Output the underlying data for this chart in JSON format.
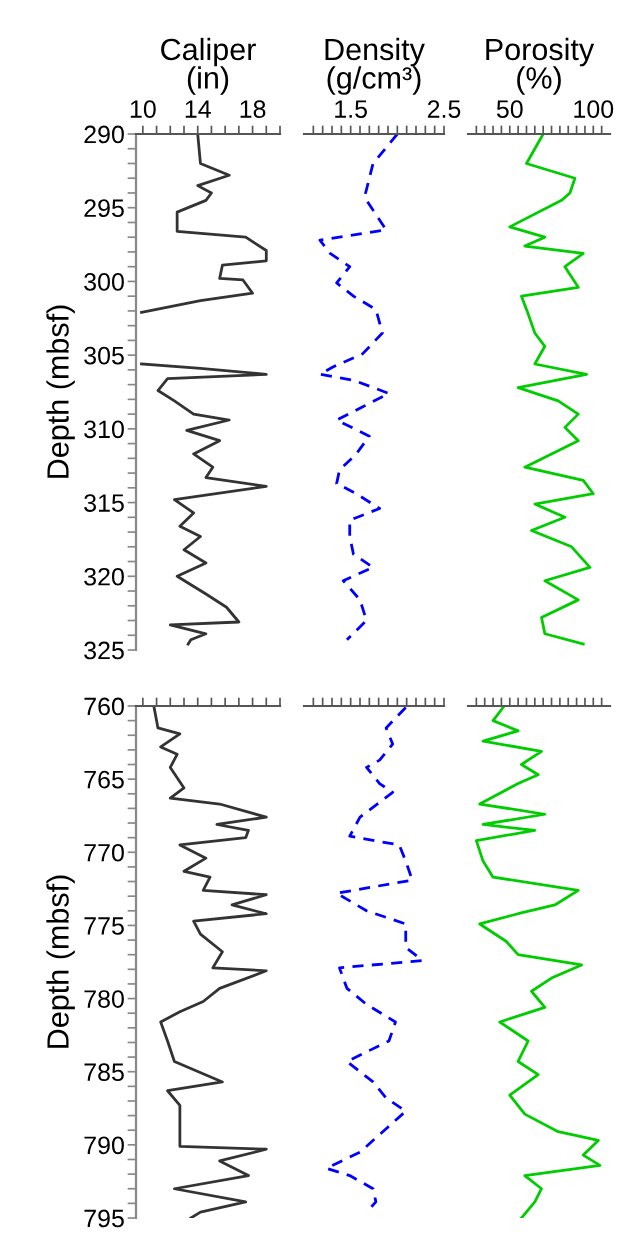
{
  "chart_data": [
    {
      "type": "line",
      "orientation": "horizontal",
      "title": "Caliper\n(in)",
      "ylabel": "Depth (mbsf)",
      "xlim": [
        9.5,
        20
      ],
      "ylim": [
        325,
        290
      ],
      "xticks": [
        10,
        {
          "value": 11,
          "label": null
        },
        {
          "value": 12,
          "label": null
        },
        {
          "value": 13,
          "label": null
        },
        14,
        {
          "value": 15,
          "label": null
        },
        {
          "value": 16,
          "label": null
        },
        {
          "value": 17,
          "label": null
        },
        18,
        {
          "value": 19,
          "label": null
        },
        {
          "value": 20,
          "label": null
        }
      ],
      "yticks": [
        290,
        {
          "value": 291,
          "label": null
        },
        {
          "value": 292,
          "label": null
        },
        {
          "value": 293,
          "label": null
        },
        {
          "value": 294,
          "label": null
        },
        295,
        {
          "value": 296,
          "label": null
        },
        {
          "value": 297,
          "label": null
        },
        {
          "value": 298,
          "label": null
        },
        {
          "value": 299,
          "label": null
        },
        300,
        {
          "value": 301,
          "label": null
        },
        {
          "value": 302,
          "label": null
        },
        {
          "value": 303,
          "label": null
        },
        {
          "value": 304,
          "label": null
        },
        305,
        {
          "value": 306,
          "label": null
        },
        {
          "value": 307,
          "label": null
        },
        {
          "value": 308,
          "label": null
        },
        {
          "value": 309,
          "label": null
        },
        310,
        {
          "value": 311,
          "label": null
        },
        {
          "value": 312,
          "label": null
        },
        {
          "value": 313,
          "label": null
        },
        {
          "value": 314,
          "label": null
        },
        315,
        {
          "value": 316,
          "label": null
        },
        {
          "value": 317,
          "label": null
        },
        {
          "value": 318,
          "label": null
        },
        {
          "value": 319,
          "label": null
        },
        320,
        {
          "value": 321,
          "label": null
        },
        {
          "value": 322,
          "label": null
        },
        {
          "value": 323,
          "label": null
        },
        {
          "value": 324,
          "label": null
        },
        325
      ],
      "series": [
        {
          "color": "#333333",
          "line_style": "solid",
          "x": [
            290,
            292,
            292.8,
            293.5,
            294,
            294.5,
            295.3,
            296.6,
            297,
            297.9,
            298.6,
            298.9,
            299.8,
            299.9,
            300.8,
            301.3,
            302.1,
            303.5,
            305.6,
            305.9,
            306.3,
            306.6,
            307.4,
            308.1,
            309,
            309.4,
            310.1,
            310.8,
            311.7,
            312.6,
            313.3,
            313.9,
            314.8,
            315.7,
            316.6,
            317.3,
            318.2,
            319.1,
            320,
            321.2,
            322.1,
            323.1,
            323.3,
            323.9,
            324.3,
            324.6
          ],
          "values": [
            14.0,
            14.2,
            16.3,
            14.0,
            15.0,
            14.6,
            12.5,
            12.5,
            17.5,
            19,
            19,
            15.8,
            15.6,
            17.3,
            18,
            14.2,
            9.9,
            null,
            9.9,
            14.2,
            19,
            11.8,
            11.1,
            12.3,
            13.7,
            16.3,
            13.2,
            15.6,
            13.7,
            15.1,
            14.6,
            19,
            12.3,
            13.7,
            12.7,
            14.2,
            13.0,
            14.6,
            12.5,
            14.6,
            16.1,
            17.0,
            12.0,
            14.6,
            13.5,
            13.3
          ]
        }
      ]
    },
    {
      "type": "line",
      "orientation": "horizontal",
      "title": "Density\n(g/cm³)",
      "xlim": [
        1,
        2.5
      ],
      "ylim": [
        325,
        290
      ],
      "tick_labels": "x",
      "xticks": [
        {
          "value": 1.1,
          "label": null
        },
        {
          "value": 1.2,
          "label": null
        },
        {
          "value": 1.3,
          "label": null
        },
        {
          "value": 1.4,
          "label": null
        },
        1.5,
        {
          "value": 1.6,
          "label": null
        },
        {
          "value": 1.7,
          "label": null
        },
        {
          "value": 1.8,
          "label": null
        },
        {
          "value": 1.9,
          "label": null
        },
        {
          "value": 2.0,
          "label": null
        },
        {
          "value": 2.1,
          "label": null
        },
        {
          "value": 2.2,
          "label": null
        },
        {
          "value": 2.3,
          "label": null
        },
        {
          "value": 2.4,
          "label": null
        },
        2.5
      ],
      "series": [
        {
          "color": "#0000ff",
          "line_style": "dashed",
          "x": [
            290,
            292,
            294,
            294.5,
            296.5,
            297.2,
            298.1,
            299,
            300.1,
            301,
            301.9,
            303.5,
            304.9,
            305.8,
            306.3,
            306.7,
            307.6,
            308.5,
            309.4,
            310.5,
            311.7,
            312.8,
            313.7,
            314.4,
            315.4,
            316.2,
            317.3,
            318.5,
            319.4,
            320.3,
            321.6,
            323,
            324.3
          ],
          "values": [
            2.0,
            1.74,
            1.66,
            1.67,
            1.88,
            1.17,
            1.28,
            1.49,
            1.35,
            1.53,
            1.77,
            1.84,
            1.63,
            1.31,
            1.17,
            1.53,
            1.91,
            1.63,
            1.35,
            1.7,
            1.56,
            1.38,
            1.35,
            1.56,
            1.81,
            1.49,
            1.49,
            1.53,
            1.74,
            1.42,
            1.6,
            1.67,
            1.46
          ]
        }
      ]
    },
    {
      "type": "line",
      "orientation": "horizontal",
      "title": "Porosity\n(%)",
      "xlim": [
        25,
        110
      ],
      "ylim": [
        325,
        290
      ],
      "tick_labels": "x",
      "xticks": [
        {
          "value": 30,
          "label": null
        },
        {
          "value": 35,
          "label": null
        },
        {
          "value": 40,
          "label": null
        },
        {
          "value": 45,
          "label": null
        },
        50,
        {
          "value": 55,
          "label": null
        },
        {
          "value": 60,
          "label": null
        },
        {
          "value": 65,
          "label": null
        },
        {
          "value": 70,
          "label": null
        },
        {
          "value": 75,
          "label": null
        },
        {
          "value": 80,
          "label": null
        },
        {
          "value": 85,
          "label": null
        },
        {
          "value": 90,
          "label": null
        },
        {
          "value": 95,
          "label": null
        },
        100,
        {
          "value": 105,
          "label": null
        }
      ],
      "series": [
        {
          "color": "#00cc00",
          "line_style": "solid",
          "x": [
            290,
            292,
            293,
            294,
            294.5,
            296.3,
            297,
            297.6,
            298.1,
            299,
            300.4,
            301,
            302.2,
            303.5,
            304.4,
            305.6,
            306.3,
            307.2,
            308.1,
            309,
            309.9,
            310.8,
            311.7,
            312.6,
            313.5,
            314.4,
            315.1,
            316,
            316.9,
            318,
            319.4,
            320.3,
            321.6,
            322.8,
            323.9,
            324.6
          ],
          "values": [
            70,
            60,
            89,
            86,
            81,
            50,
            71,
            59,
            94,
            83,
            91,
            57,
            61,
            65,
            71,
            65,
            96,
            55,
            79,
            91,
            83,
            91,
            75,
            59,
            94,
            100,
            65,
            83,
            63,
            87,
            98,
            71,
            91,
            69,
            71,
            94
          ]
        }
      ]
    },
    {
      "type": "line",
      "orientation": "horizontal",
      "ylabel": "Depth (mbsf)",
      "xlim": [
        9.5,
        20
      ],
      "ylim": [
        795,
        760
      ],
      "tick_labels": "y",
      "xticks": [
        10,
        {
          "value": 11,
          "label": null
        },
        {
          "value": 12,
          "label": null
        },
        {
          "value": 13,
          "label": null
        },
        14,
        {
          "value": 15,
          "label": null
        },
        {
          "value": 16,
          "label": null
        },
        {
          "value": 17,
          "label": null
        },
        18,
        {
          "value": 19,
          "label": null
        },
        {
          "value": 20,
          "label": null
        }
      ],
      "yticks": [
        760,
        {
          "value": 761,
          "label": null
        },
        {
          "value": 762,
          "label": null
        },
        {
          "value": 763,
          "label": null
        },
        {
          "value": 764,
          "label": null
        },
        765,
        {
          "value": 766,
          "label": null
        },
        {
          "value": 767,
          "label": null
        },
        {
          "value": 768,
          "label": null
        },
        {
          "value": 769,
          "label": null
        },
        770,
        {
          "value": 771,
          "label": null
        },
        {
          "value": 772,
          "label": null
        },
        {
          "value": 773,
          "label": null
        },
        {
          "value": 774,
          "label": null
        },
        775,
        {
          "value": 776,
          "label": null
        },
        {
          "value": 777,
          "label": null
        },
        {
          "value": 778,
          "label": null
        },
        {
          "value": 779,
          "label": null
        },
        780,
        {
          "value": 781,
          "label": null
        },
        {
          "value": 782,
          "label": null
        },
        {
          "value": 783,
          "label": null
        },
        {
          "value": 784,
          "label": null
        },
        785,
        {
          "value": 786,
          "label": null
        },
        {
          "value": 787,
          "label": null
        },
        {
          "value": 788,
          "label": null
        },
        {
          "value": 789,
          "label": null
        },
        790,
        {
          "value": 791,
          "label": null
        },
        {
          "value": 792,
          "label": null
        },
        {
          "value": 793,
          "label": null
        },
        {
          "value": 794,
          "label": null
        },
        795
      ],
      "series": [
        {
          "color": "#333333",
          "line_style": "solid",
          "x": [
            760,
            761.5,
            761.9,
            762.8,
            763.3,
            764.2,
            765.6,
            766.3,
            766.7,
            767.6,
            768.1,
            768.5,
            769,
            769.5,
            770.4,
            771.3,
            771.7,
            772.6,
            772.9,
            773.6,
            774.2,
            774.7,
            775.6,
            776.8,
            777.9,
            778.1,
            779.3,
            780.2,
            780.9,
            781.6,
            782.9,
            784.3,
            785.7,
            786.3,
            787.3,
            788.4,
            790.1,
            790.3,
            791.1,
            792.1,
            793,
            793.9,
            794.6,
            795
          ],
          "values": [
            10.8,
            11.1,
            12.7,
            11.3,
            12.5,
            12.0,
            13.0,
            12.0,
            15.6,
            19,
            15.4,
            17.7,
            17.5,
            12.7,
            14.6,
            13.0,
            14.9,
            14.4,
            19,
            16.5,
            19,
            13.7,
            14.2,
            15.8,
            15.1,
            19,
            15.6,
            14.4,
            12.7,
            11.3,
            11.8,
            12.3,
            15.8,
            11.8,
            12.7,
            12.7,
            12.7,
            19,
            15.6,
            17.7,
            12.3,
            17.5,
            14.2,
            13.5
          ]
        }
      ]
    },
    {
      "type": "line",
      "orientation": "horizontal",
      "xlim": [
        1,
        2.5
      ],
      "ylim": [
        795,
        760
      ],
      "tick_labels": false,
      "xticks": [
        {
          "value": 1.1,
          "label": null
        },
        {
          "value": 1.2,
          "label": null
        },
        {
          "value": 1.3,
          "label": null
        },
        {
          "value": 1.4,
          "label": null
        },
        1.5,
        {
          "value": 1.6,
          "label": null
        },
        {
          "value": 1.7,
          "label": null
        },
        {
          "value": 1.8,
          "label": null
        },
        {
          "value": 1.9,
          "label": null
        },
        {
          "value": 2.0,
          "label": null
        },
        {
          "value": 2.1,
          "label": null
        },
        {
          "value": 2.2,
          "label": null
        },
        {
          "value": 2.3,
          "label": null
        },
        {
          "value": 2.4,
          "label": null
        },
        2.5
      ],
      "series": [
        {
          "color": "#0000ff",
          "line_style": "dashed",
          "x": [
            760.1,
            761.5,
            762.6,
            763.7,
            764.2,
            765.3,
            765.9,
            767.6,
            768.9,
            769.5,
            770.6,
            771.9,
            772.8,
            774,
            774.9,
            776.5,
            777.4,
            777.9,
            779.3,
            780.4,
            781.6,
            782.9,
            784.3,
            785.7,
            786.8,
            787.7,
            788.9,
            790.5,
            791.6,
            792.1,
            793,
            793.9,
            794.6
          ],
          "values": [
            2.09,
            1.88,
            1.95,
            1.81,
            1.67,
            1.81,
            1.95,
            1.6,
            1.49,
            2.02,
            2.09,
            2.16,
            1.35,
            1.67,
            2.09,
            2.09,
            2.27,
            1.38,
            1.46,
            1.67,
            1.98,
            1.91,
            1.46,
            1.74,
            1.88,
            2.09,
            1.88,
            1.6,
            1.24,
            1.49,
            1.74,
            1.77,
            1.67
          ]
        }
      ]
    },
    {
      "type": "line",
      "orientation": "horizontal",
      "xlim": [
        25,
        110
      ],
      "ylim": [
        795,
        760
      ],
      "tick_labels": false,
      "xticks": [
        {
          "value": 30,
          "label": null
        },
        {
          "value": 35,
          "label": null
        },
        {
          "value": 40,
          "label": null
        },
        {
          "value": 45,
          "label": null
        },
        50,
        {
          "value": 55,
          "label": null
        },
        {
          "value": 60,
          "label": null
        },
        {
          "value": 65,
          "label": null
        },
        {
          "value": 70,
          "label": null
        },
        {
          "value": 75,
          "label": null
        },
        {
          "value": 80,
          "label": null
        },
        {
          "value": 85,
          "label": null
        },
        {
          "value": 90,
          "label": null
        },
        {
          "value": 95,
          "label": null
        },
        100,
        {
          "value": 105,
          "label": null
        }
      ],
      "series": [
        {
          "color": "#00cc00",
          "line_style": "solid",
          "x": [
            760.1,
            761,
            761.7,
            762.4,
            763.1,
            764,
            764.7,
            765.3,
            766.7,
            767.4,
            768.1,
            768.5,
            769.2,
            770.6,
            771.7,
            772.6,
            773.6,
            774.2,
            774.9,
            776.1,
            777,
            777.7,
            778.6,
            779.5,
            780.6,
            781.6,
            782.9,
            784.3,
            785.2,
            786.6,
            787.9,
            789.1,
            789.7,
            790.7,
            791.4,
            792.1,
            793,
            793.9,
            795
          ],
          "values": [
            46,
            40,
            55,
            34,
            69,
            57,
            67,
            55,
            32,
            71,
            34,
            65,
            30,
            34,
            40,
            91,
            77,
            55,
            32,
            48,
            55,
            93,
            75,
            63,
            71,
            44,
            61,
            55,
            67,
            50,
            59,
            79,
            103,
            94,
            104,
            59,
            69,
            65,
            57
          ]
        }
      ]
    }
  ]
}
